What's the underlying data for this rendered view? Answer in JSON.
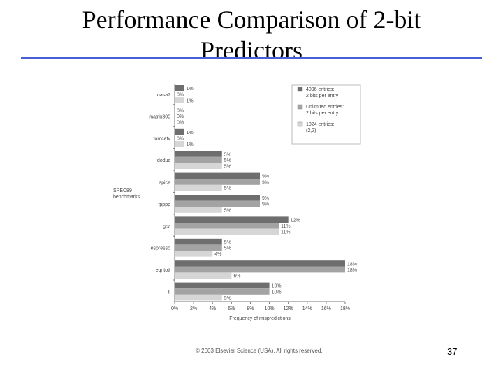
{
  "slide": {
    "title": "Performance Comparison of 2-bit Predictors",
    "footer": "© 2003 Elsevier Science (USA). All rights reserved.",
    "page_number": "37"
  },
  "chart_data": {
    "type": "bar",
    "orientation": "horizontal",
    "title": "",
    "ylabel": "SPEC89 benchmarks",
    "xlabel": "Frequency of mispredictions",
    "categories": [
      "nasa7",
      "matrix300",
      "tomcatv",
      "doduc",
      "spice",
      "fpppp",
      "gcc",
      "espresso",
      "eqntott",
      "li"
    ],
    "series": [
      {
        "name": "4096 entries: 2 bits per entry",
        "color": "#6e6e6e",
        "values": [
          1,
          0,
          1,
          5,
          9,
          9,
          12,
          5,
          18,
          10
        ]
      },
      {
        "name": "Unlimited entries: 2 bits per entry",
        "color": "#a3a3a3",
        "values": [
          0,
          0,
          0,
          5,
          9,
          9,
          11,
          5,
          18,
          10
        ]
      },
      {
        "name": "1024 entries: (2,2)",
        "color": "#d6d6d6",
        "values": [
          1,
          0,
          1,
          5,
          5,
          5,
          11,
          4,
          6,
          5
        ]
      }
    ],
    "xticks": [
      "0%",
      "2%",
      "4%",
      "6%",
      "8%",
      "10%",
      "12%",
      "14%",
      "16%",
      "18%"
    ],
    "xlim": [
      0,
      18
    ],
    "legend": [
      {
        "line1": "4096 entries:",
        "line2": "2 bits per entry"
      },
      {
        "line1": "Unlimited entries:",
        "line2": "2 bits per entry"
      },
      {
        "line1": "1024 entries:",
        "line2": "(2,2)"
      }
    ],
    "legend_position": "top-right",
    "grid": false
  }
}
